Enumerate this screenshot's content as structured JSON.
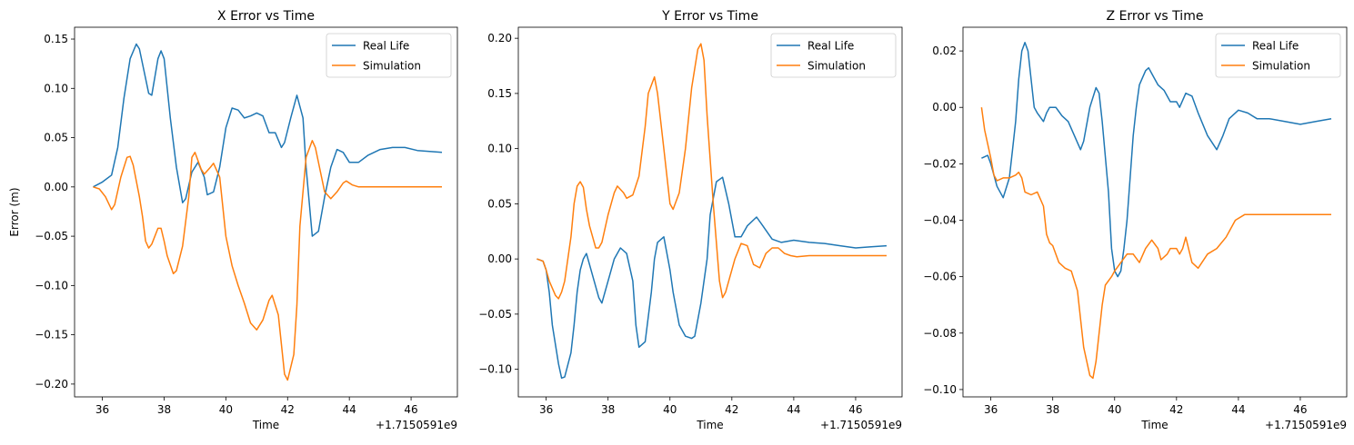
{
  "colors": {
    "real": "#1f77b4",
    "sim": "#ff7f0e"
  },
  "chart_data": [
    {
      "type": "line",
      "title": "X Error vs Time",
      "xlabel": "Time",
      "ylabel": "Error (m)",
      "offset_label": "+1.7150591e9",
      "xlim": [
        35.1,
        47.5
      ],
      "ylim": [
        -0.213,
        0.162
      ],
      "xticks": [
        36,
        38,
        40,
        42,
        44,
        46
      ],
      "yticks": [
        -0.2,
        -0.15,
        -0.1,
        -0.05,
        0.0,
        0.05,
        0.1,
        0.15
      ],
      "ytick_labels": [
        "−0.20",
        "−0.15",
        "−0.10",
        "−0.05",
        "0.00",
        "0.05",
        "0.10",
        "0.15"
      ],
      "legend": "upper right",
      "series": [
        {
          "name": "Real Life",
          "color": "#1f77b4",
          "x": [
            35.7,
            36.0,
            36.3,
            36.5,
            36.7,
            36.9,
            37.1,
            37.2,
            37.4,
            37.5,
            37.6,
            37.8,
            37.9,
            38.0,
            38.2,
            38.4,
            38.6,
            38.7,
            38.9,
            39.1,
            39.3,
            39.4,
            39.6,
            39.8,
            40.0,
            40.2,
            40.4,
            40.6,
            40.8,
            41.0,
            41.2,
            41.4,
            41.6,
            41.8,
            41.9,
            42.1,
            42.3,
            42.5,
            42.6,
            42.8,
            43.0,
            43.2,
            43.4,
            43.6,
            43.8,
            44.0,
            44.3,
            44.6,
            45.0,
            45.4,
            45.8,
            46.2,
            46.6,
            47.0
          ],
          "y": [
            0.0,
            0.005,
            0.012,
            0.04,
            0.09,
            0.13,
            0.145,
            0.14,
            0.11,
            0.095,
            0.093,
            0.13,
            0.138,
            0.13,
            0.07,
            0.02,
            -0.016,
            -0.012,
            0.015,
            0.025,
            0.01,
            -0.008,
            -0.005,
            0.02,
            0.06,
            0.08,
            0.078,
            0.07,
            0.072,
            0.075,
            0.072,
            0.055,
            0.055,
            0.04,
            0.045,
            0.07,
            0.093,
            0.07,
            0.02,
            -0.05,
            -0.045,
            -0.01,
            0.02,
            0.038,
            0.035,
            0.025,
            0.025,
            0.032,
            0.038,
            0.04,
            0.04,
            0.037,
            0.036,
            0.035
          ]
        },
        {
          "name": "Simulation",
          "color": "#ff7f0e",
          "x": [
            35.7,
            35.9,
            36.1,
            36.3,
            36.4,
            36.6,
            36.8,
            36.9,
            37.0,
            37.2,
            37.3,
            37.4,
            37.5,
            37.6,
            37.8,
            37.9,
            38.0,
            38.1,
            38.3,
            38.4,
            38.6,
            38.8,
            38.9,
            39.0,
            39.2,
            39.3,
            39.5,
            39.6,
            39.8,
            39.9,
            40.0,
            40.2,
            40.4,
            40.6,
            40.8,
            41.0,
            41.2,
            41.4,
            41.5,
            41.7,
            41.8,
            41.9,
            42.0,
            42.2,
            42.3,
            42.4,
            42.6,
            42.8,
            42.9,
            43.1,
            43.2,
            43.4,
            43.6,
            43.8,
            43.9,
            44.1,
            44.3,
            44.6,
            45.0,
            45.5,
            46.0,
            46.5,
            47.0
          ],
          "y": [
            0.0,
            -0.002,
            -0.01,
            -0.023,
            -0.018,
            0.01,
            0.03,
            0.031,
            0.022,
            -0.01,
            -0.03,
            -0.055,
            -0.062,
            -0.058,
            -0.042,
            -0.042,
            -0.055,
            -0.07,
            -0.088,
            -0.085,
            -0.06,
            -0.01,
            0.03,
            0.035,
            0.018,
            0.013,
            0.02,
            0.024,
            0.01,
            -0.02,
            -0.05,
            -0.08,
            -0.1,
            -0.118,
            -0.138,
            -0.145,
            -0.135,
            -0.115,
            -0.11,
            -0.13,
            -0.16,
            -0.19,
            -0.196,
            -0.17,
            -0.12,
            -0.04,
            0.03,
            0.047,
            0.04,
            0.01,
            -0.005,
            -0.012,
            -0.005,
            0.004,
            0.006,
            0.002,
            0.0,
            0.0,
            0.0,
            0.0,
            0.0,
            0.0,
            0.0
          ]
        }
      ]
    },
    {
      "type": "line",
      "title": "Y Error vs Time",
      "xlabel": "Time",
      "ylabel": "",
      "offset_label": "+1.7150591e9",
      "xlim": [
        35.1,
        47.5
      ],
      "ylim": [
        -0.125,
        0.21
      ],
      "xticks": [
        36,
        38,
        40,
        42,
        44,
        46
      ],
      "yticks": [
        -0.1,
        -0.05,
        0.0,
        0.05,
        0.1,
        0.15,
        0.2
      ],
      "ytick_labels": [
        "−0.10",
        "−0.05",
        "0.00",
        "0.05",
        "0.10",
        "0.15",
        "0.20"
      ],
      "legend": "upper right",
      "series": [
        {
          "name": "Real Life",
          "color": "#1f77b4",
          "x": [
            35.7,
            35.9,
            36.0,
            36.1,
            36.2,
            36.4,
            36.5,
            36.6,
            36.8,
            36.9,
            37.0,
            37.1,
            37.2,
            37.3,
            37.5,
            37.7,
            37.8,
            37.9,
            38.1,
            38.2,
            38.4,
            38.6,
            38.8,
            38.9,
            39.0,
            39.2,
            39.4,
            39.5,
            39.6,
            39.8,
            40.0,
            40.1,
            40.3,
            40.5,
            40.7,
            40.8,
            41.0,
            41.2,
            41.3,
            41.5,
            41.7,
            41.9,
            42.1,
            42.3,
            42.5,
            42.8,
            43.0,
            43.3,
            43.6,
            44.0,
            44.5,
            45.0,
            45.5,
            46.0,
            46.5,
            47.0
          ],
          "y": [
            0.0,
            -0.002,
            -0.01,
            -0.03,
            -0.06,
            -0.095,
            -0.108,
            -0.107,
            -0.085,
            -0.06,
            -0.03,
            -0.01,
            0.0,
            0.005,
            -0.015,
            -0.035,
            -0.04,
            -0.03,
            -0.01,
            0.0,
            0.01,
            0.005,
            -0.02,
            -0.06,
            -0.08,
            -0.075,
            -0.03,
            0.0,
            0.015,
            0.02,
            -0.01,
            -0.03,
            -0.06,
            -0.07,
            -0.072,
            -0.07,
            -0.04,
            0.0,
            0.04,
            0.07,
            0.074,
            0.05,
            0.02,
            0.02,
            0.03,
            0.038,
            0.03,
            0.018,
            0.015,
            0.017,
            0.015,
            0.014,
            0.012,
            0.01,
            0.011,
            0.012
          ]
        },
        {
          "name": "Simulation",
          "color": "#ff7f0e",
          "x": [
            35.7,
            35.9,
            36.0,
            36.1,
            36.3,
            36.4,
            36.5,
            36.6,
            36.8,
            36.9,
            37.0,
            37.1,
            37.2,
            37.3,
            37.4,
            37.5,
            37.6,
            37.7,
            37.8,
            38.0,
            38.2,
            38.3,
            38.5,
            38.6,
            38.8,
            39.0,
            39.2,
            39.3,
            39.5,
            39.6,
            39.8,
            40.0,
            40.1,
            40.3,
            40.5,
            40.7,
            40.9,
            41.0,
            41.1,
            41.2,
            41.4,
            41.6,
            41.7,
            41.8,
            41.9,
            42.1,
            42.3,
            42.5,
            42.7,
            42.9,
            43.1,
            43.3,
            43.5,
            43.7,
            43.9,
            44.1,
            44.5,
            45.0,
            45.5,
            46.0,
            47.0
          ],
          "y": [
            0.0,
            -0.002,
            -0.01,
            -0.02,
            -0.033,
            -0.036,
            -0.03,
            -0.02,
            0.02,
            0.05,
            0.066,
            0.07,
            0.065,
            0.045,
            0.03,
            0.02,
            0.01,
            0.01,
            0.015,
            0.04,
            0.06,
            0.066,
            0.06,
            0.055,
            0.058,
            0.075,
            0.12,
            0.15,
            0.165,
            0.15,
            0.1,
            0.05,
            0.045,
            0.06,
            0.1,
            0.155,
            0.19,
            0.195,
            0.18,
            0.13,
            0.05,
            -0.02,
            -0.035,
            -0.03,
            -0.02,
            0.0,
            0.014,
            0.012,
            -0.005,
            -0.008,
            0.005,
            0.01,
            0.01,
            0.005,
            0.003,
            0.002,
            0.003,
            0.003,
            0.003,
            0.003,
            0.003
          ]
        }
      ]
    },
    {
      "type": "line",
      "title": "Z Error vs Time",
      "xlabel": "Time",
      "ylabel": "",
      "offset_label": "+1.7150591e9",
      "xlim": [
        35.1,
        47.5
      ],
      "ylim": [
        -0.1026,
        0.0284
      ],
      "xticks": [
        36,
        38,
        40,
        42,
        44,
        46
      ],
      "yticks": [
        -0.1,
        -0.08,
        -0.06,
        -0.04,
        -0.02,
        0.0,
        0.02
      ],
      "ytick_labels": [
        "−0.10",
        "−0.08",
        "−0.06",
        "−0.04",
        "−0.02",
        "0.00",
        "0.02"
      ],
      "legend": "upper right",
      "series": [
        {
          "name": "Real Life",
          "color": "#1f77b4",
          "x": [
            35.7,
            35.9,
            36.0,
            36.2,
            36.4,
            36.6,
            36.7,
            36.8,
            36.9,
            37.0,
            37.1,
            37.2,
            37.3,
            37.4,
            37.5,
            37.7,
            37.8,
            37.9,
            38.1,
            38.3,
            38.5,
            38.7,
            38.9,
            39.0,
            39.2,
            39.4,
            39.5,
            39.6,
            39.8,
            39.9,
            40.0,
            40.1,
            40.2,
            40.3,
            40.4,
            40.6,
            40.7,
            40.8,
            41.0,
            41.1,
            41.2,
            41.4,
            41.6,
            41.8,
            42.0,
            42.1,
            42.3,
            42.5,
            42.7,
            43.0,
            43.3,
            43.5,
            43.7,
            44.0,
            44.3,
            44.6,
            45.0,
            45.5,
            46.0,
            46.5,
            47.0
          ],
          "y": [
            -0.018,
            -0.017,
            -0.02,
            -0.028,
            -0.032,
            -0.025,
            -0.015,
            -0.005,
            0.01,
            0.02,
            0.023,
            0.02,
            0.01,
            0.0,
            -0.002,
            -0.005,
            -0.002,
            0.0,
            0.0,
            -0.003,
            -0.005,
            -0.01,
            -0.015,
            -0.012,
            0.0,
            0.007,
            0.005,
            -0.005,
            -0.03,
            -0.05,
            -0.058,
            -0.06,
            -0.058,
            -0.05,
            -0.04,
            -0.01,
            0.0,
            0.008,
            0.013,
            0.014,
            0.012,
            0.008,
            0.006,
            0.002,
            0.002,
            0.0,
            0.005,
            0.004,
            -0.002,
            -0.01,
            -0.015,
            -0.01,
            -0.004,
            -0.001,
            -0.002,
            -0.004,
            -0.004,
            -0.005,
            -0.006,
            -0.005,
            -0.004
          ]
        },
        {
          "name": "Simulation",
          "color": "#ff7f0e",
          "x": [
            35.7,
            35.8,
            36.0,
            36.1,
            36.2,
            36.4,
            36.6,
            36.8,
            36.9,
            37.0,
            37.1,
            37.3,
            37.5,
            37.7,
            37.8,
            37.9,
            38.0,
            38.2,
            38.4,
            38.6,
            38.8,
            38.9,
            39.0,
            39.2,
            39.3,
            39.4,
            39.5,
            39.6,
            39.7,
            39.9,
            40.0,
            40.2,
            40.4,
            40.6,
            40.8,
            41.0,
            41.2,
            41.4,
            41.5,
            41.7,
            41.8,
            42.0,
            42.1,
            42.2,
            42.3,
            42.5,
            42.7,
            43.0,
            43.3,
            43.6,
            43.9,
            44.2,
            44.5,
            45.0,
            45.5,
            46.0,
            47.0
          ],
          "y": [
            0.0,
            -0.008,
            -0.018,
            -0.024,
            -0.026,
            -0.025,
            -0.025,
            -0.024,
            -0.023,
            -0.025,
            -0.03,
            -0.031,
            -0.03,
            -0.035,
            -0.045,
            -0.048,
            -0.049,
            -0.055,
            -0.057,
            -0.058,
            -0.065,
            -0.075,
            -0.085,
            -0.095,
            -0.096,
            -0.09,
            -0.08,
            -0.07,
            -0.063,
            -0.06,
            -0.058,
            -0.055,
            -0.052,
            -0.052,
            -0.055,
            -0.05,
            -0.047,
            -0.05,
            -0.054,
            -0.052,
            -0.05,
            -0.05,
            -0.052,
            -0.05,
            -0.046,
            -0.055,
            -0.057,
            -0.052,
            -0.05,
            -0.046,
            -0.04,
            -0.038,
            -0.038,
            -0.038,
            -0.038,
            -0.038,
            -0.038
          ]
        }
      ]
    }
  ]
}
